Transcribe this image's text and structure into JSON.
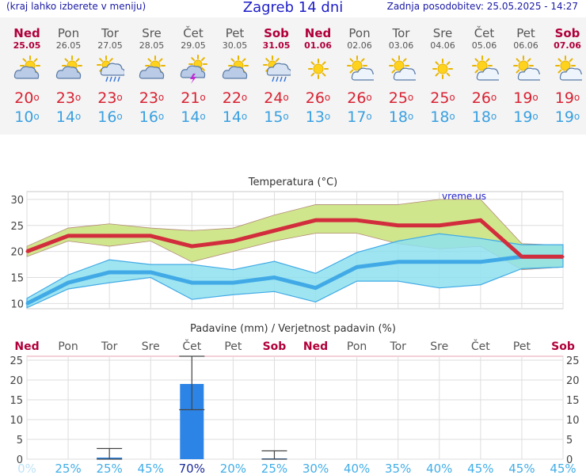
{
  "header": {
    "menu_hint": "(kraj lahko izberete v meniju)",
    "title": "Zagreb 14 dni",
    "updated": "Zadnja posodobitev: 25.05.2025 - 14:27"
  },
  "days": [
    {
      "name": "Ned",
      "date": "25.05",
      "weekend": true,
      "icon": "partly-cloudy-icon",
      "tmax": "20",
      "tmin": "10"
    },
    {
      "name": "Pon",
      "date": "26.05",
      "weekend": false,
      "icon": "partly-cloudy-icon",
      "tmax": "23",
      "tmin": "14"
    },
    {
      "name": "Tor",
      "date": "27.05",
      "weekend": false,
      "icon": "sun-rain-icon",
      "tmax": "23",
      "tmin": "16"
    },
    {
      "name": "Sre",
      "date": "28.05",
      "weekend": false,
      "icon": "partly-cloudy-icon",
      "tmax": "23",
      "tmin": "16"
    },
    {
      "name": "Čet",
      "date": "29.05",
      "weekend": false,
      "icon": "thunderstorm-icon",
      "tmax": "21",
      "tmin": "14"
    },
    {
      "name": "Pet",
      "date": "30.05",
      "weekend": false,
      "icon": "partly-cloudy-icon",
      "tmax": "22",
      "tmin": "14"
    },
    {
      "name": "Sob",
      "date": "31.05",
      "weekend": true,
      "icon": "sun-rain-icon",
      "tmax": "24",
      "tmin": "15"
    },
    {
      "name": "Ned",
      "date": "01.06",
      "weekend": true,
      "icon": "sun-icon",
      "tmax": "26",
      "tmin": "13"
    },
    {
      "name": "Pon",
      "date": "02.06",
      "weekend": false,
      "icon": "sun-cloud-icon",
      "tmax": "26",
      "tmin": "17"
    },
    {
      "name": "Tor",
      "date": "03.06",
      "weekend": false,
      "icon": "sun-cloud-icon",
      "tmax": "25",
      "tmin": "18"
    },
    {
      "name": "Sre",
      "date": "04.06",
      "weekend": false,
      "icon": "sun-icon",
      "tmax": "25",
      "tmin": "18"
    },
    {
      "name": "Čet",
      "date": "05.06",
      "weekend": false,
      "icon": "sun-cloud-icon",
      "tmax": "26",
      "tmin": "18"
    },
    {
      "name": "Pet",
      "date": "06.06",
      "weekend": false,
      "icon": "sun-cloud-icon",
      "tmax": "19",
      "tmin": "19"
    },
    {
      "name": "Sob",
      "date": "07.06",
      "weekend": true,
      "icon": "sun-cloud-icon",
      "tmax": "19",
      "tmin": "19"
    }
  ],
  "temp_chart": {
    "title": "Temperatura (°C)",
    "watermark": "vreme.us"
  },
  "precip_chart": {
    "title": "Padavine (mm) / Verjetnost padavin (%)"
  },
  "colors": {
    "max_line": "#d22d3c",
    "min_line": "#41aae6",
    "max_band": "#cfe68c",
    "min_band": "#8ee0ef",
    "overlap_band": "#86d28a",
    "bar": "#2b84e6",
    "weekend": "#b0003a"
  },
  "chart_data": [
    {
      "type": "line",
      "title": "Temperatura (°C)",
      "xlabel": "",
      "ylabel": "",
      "ylim": [
        9,
        31.5
      ],
      "yticks": [
        10,
        15,
        20,
        25,
        30
      ],
      "x": [
        0,
        1,
        2,
        3,
        4,
        5,
        6,
        7,
        8,
        9,
        10,
        11,
        12,
        13
      ],
      "grid": true,
      "series": [
        {
          "values": [
            20,
            23,
            23,
            23,
            21,
            22,
            24,
            26,
            26,
            25,
            25,
            26,
            19,
            19
          ],
          "band_low": [
            19,
            22,
            21,
            22,
            18,
            20,
            22,
            23.5,
            23.5,
            21.5,
            20.5,
            21,
            16.5,
            17
          ],
          "band_high": [
            21,
            24.5,
            25.3,
            24.5,
            24,
            24.5,
            27,
            29,
            29,
            29,
            30,
            30,
            21.5,
            21.2
          ]
        },
        {
          "values": [
            10,
            14,
            16,
            16,
            14,
            14,
            15,
            13,
            17,
            18,
            18,
            18,
            19,
            19
          ],
          "band_low": [
            9.2,
            12.8,
            14,
            15,
            10.8,
            11.7,
            12.3,
            10.3,
            14.3,
            14.3,
            13,
            13.6,
            16.7,
            17
          ],
          "band_high": [
            11,
            15.5,
            18.4,
            17.5,
            17.5,
            16.5,
            18.1,
            15.8,
            19.8,
            22,
            23.4,
            22.5,
            21.3,
            21.3
          ]
        }
      ]
    },
    {
      "type": "bar",
      "title": "Padavine (mm) / Verjetnost padavin (%)",
      "categories": [
        "Ned",
        "Pon",
        "Tor",
        "Sre",
        "Čet",
        "Pet",
        "Sob",
        "Ned",
        "Pon",
        "Tor",
        "Sre",
        "Čet",
        "Pet",
        "Sob"
      ],
      "weekend": [
        true,
        false,
        false,
        false,
        false,
        false,
        true,
        true,
        false,
        false,
        false,
        false,
        false,
        true
      ],
      "values": [
        0,
        0,
        0.4,
        0,
        19,
        0,
        0.2,
        0,
        0,
        0,
        0,
        0,
        0,
        0
      ],
      "error_low": [
        null,
        null,
        0,
        null,
        12.5,
        null,
        0,
        null,
        null,
        null,
        null,
        null,
        null,
        null
      ],
      "error_high": [
        null,
        null,
        2.7,
        null,
        26,
        null,
        2.1,
        null,
        null,
        null,
        null,
        null,
        null,
        null
      ],
      "probability": [
        "0%",
        "25%",
        "25%",
        "45%",
        "70%",
        "20%",
        "25%",
        "30%",
        "40%",
        "35%",
        "40%",
        "45%",
        "45%",
        "45%"
      ],
      "ylim": [
        0,
        26
      ],
      "yticks": [
        0,
        5,
        10,
        15,
        20,
        25
      ],
      "grid": true
    }
  ]
}
